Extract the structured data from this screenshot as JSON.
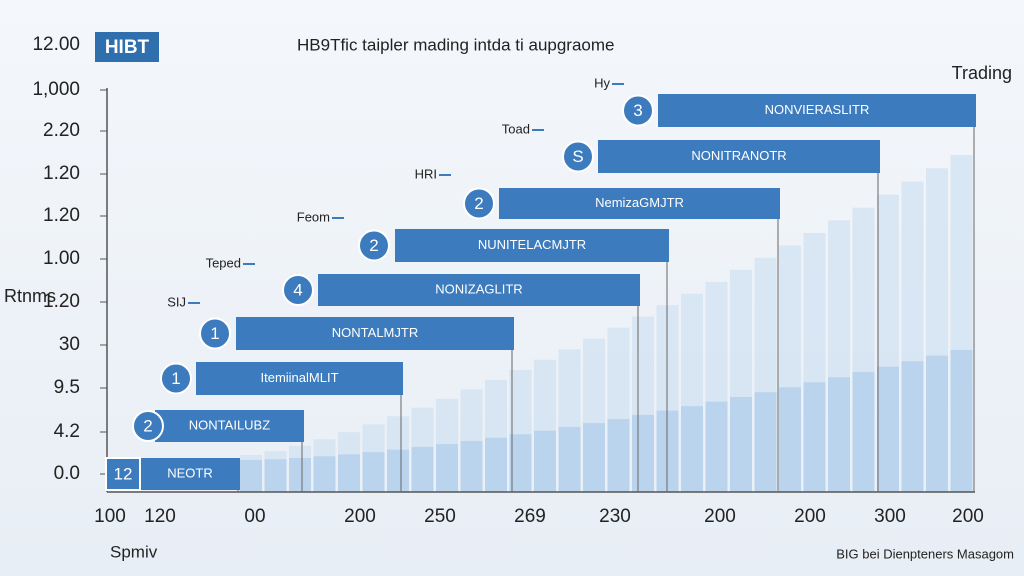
{
  "badge": "HIBT",
  "title": "HB9Tfic taipler mading intda ti aupgraome",
  "corner_label": "Trading",
  "y_axis_title": "Rtnms",
  "y_axis_labels": [
    "12.00",
    "1,000",
    "2.20",
    "1.20",
    "1.20",
    "1.00",
    "1.20",
    "30",
    "9.5",
    "4.2",
    "0.0"
  ],
  "x_axis_labels": [
    "100",
    "120",
    "00",
    "200",
    "250",
    "269",
    "230",
    "200",
    "200",
    "300",
    "200"
  ],
  "x_axis_title": "Spmiv",
  "footer": "BIG bei Dienpteners Masagom",
  "bars": [
    {
      "badge": "3",
      "label": "NONVIERASLITR",
      "tag": "Hy"
    },
    {
      "badge": "S",
      "label": "NONITRANOTR",
      "tag": "Toad"
    },
    {
      "badge": "2",
      "label": "NemizaGMJTR",
      "tag": "HRI"
    },
    {
      "badge": "2",
      "label": "NUNITELACMJTR",
      "tag": "Feom"
    },
    {
      "badge": "4",
      "label": "NONIZAGLITR",
      "tag": "Teped"
    },
    {
      "badge": "1",
      "label": "NONTALMJTR",
      "tag": "SIJ"
    },
    {
      "badge": "1",
      "label": "ItemiinalMLIT"
    },
    {
      "badge": "2",
      "label": "NONTAILUBZ"
    },
    {
      "badge": "12",
      "label": "NEOTR"
    }
  ]
}
